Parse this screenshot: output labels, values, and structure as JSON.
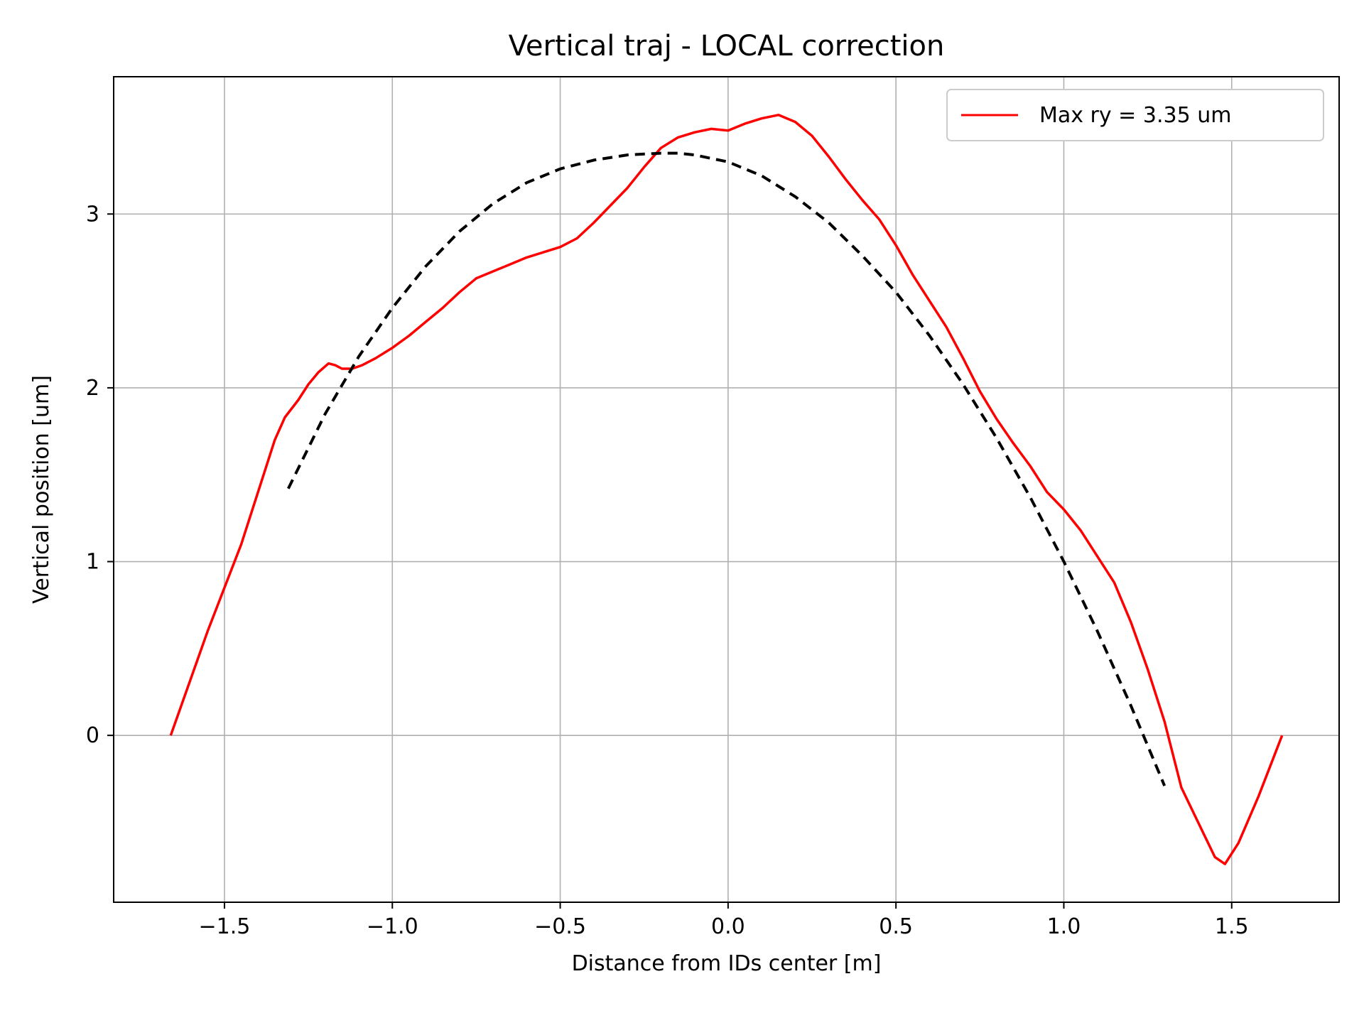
{
  "colors": {
    "measured": "#ff0000",
    "fit": "#000000",
    "grid": "#b0b0b0",
    "axes": "#000000",
    "legend_border": "#cccccc"
  },
  "chart_data": {
    "type": "line",
    "title": "Vertical traj - LOCAL correction",
    "xlabel": "Distance from IDs center [m]",
    "ylabel": "Vertical position [um]",
    "xlim": [
      -1.83,
      1.82
    ],
    "ylim": [
      -0.96,
      3.79
    ],
    "x_ticks": [
      -1.5,
      -1.0,
      -0.5,
      0.0,
      0.5,
      1.0,
      1.5
    ],
    "x_tick_labels": [
      "−1.5",
      "−1.0",
      "−0.5",
      "0.0",
      "0.5",
      "1.0",
      "1.5"
    ],
    "y_ticks": [
      0,
      1,
      2,
      3
    ],
    "y_tick_labels": [
      "0",
      "1",
      "2",
      "3"
    ],
    "grid": true,
    "legend_position": "top-right",
    "series": [
      {
        "name": "Max ry = 3.35 um",
        "style": "solid",
        "color": "#ff0000",
        "x": [
          -1.66,
          -1.55,
          -1.45,
          -1.4,
          -1.35,
          -1.32,
          -1.28,
          -1.25,
          -1.22,
          -1.19,
          -1.17,
          -1.15,
          -1.12,
          -1.09,
          -1.05,
          -1.0,
          -0.95,
          -0.9,
          -0.85,
          -0.8,
          -0.75,
          -0.7,
          -0.65,
          -0.6,
          -0.55,
          -0.5,
          -0.45,
          -0.4,
          -0.35,
          -0.3,
          -0.25,
          -0.2,
          -0.15,
          -0.1,
          -0.05,
          0.0,
          0.05,
          0.1,
          0.15,
          0.2,
          0.25,
          0.3,
          0.35,
          0.4,
          0.45,
          0.5,
          0.55,
          0.6,
          0.65,
          0.7,
          0.75,
          0.8,
          0.85,
          0.9,
          0.95,
          1.0,
          1.05,
          1.1,
          1.15,
          1.2,
          1.25,
          1.3,
          1.35,
          1.4,
          1.45,
          1.48,
          1.52,
          1.58,
          1.65
        ],
        "y": [
          0.0,
          0.6,
          1.1,
          1.4,
          1.7,
          1.83,
          1.93,
          2.02,
          2.09,
          2.14,
          2.13,
          2.11,
          2.11,
          2.13,
          2.17,
          2.23,
          2.3,
          2.38,
          2.46,
          2.55,
          2.63,
          2.67,
          2.71,
          2.75,
          2.78,
          2.81,
          2.86,
          2.95,
          3.05,
          3.15,
          3.27,
          3.38,
          3.44,
          3.47,
          3.49,
          3.48,
          3.52,
          3.55,
          3.57,
          3.53,
          3.45,
          3.33,
          3.2,
          3.08,
          2.97,
          2.82,
          2.65,
          2.5,
          2.35,
          2.17,
          1.98,
          1.82,
          1.68,
          1.55,
          1.4,
          1.3,
          1.18,
          1.03,
          0.88,
          0.65,
          0.38,
          0.08,
          -0.3,
          -0.5,
          -0.7,
          -0.74,
          -0.62,
          -0.35,
          0.0
        ]
      },
      {
        "name": "",
        "style": "dashed",
        "color": "#000000",
        "x": [
          -1.31,
          -1.2,
          -1.1,
          -1.0,
          -0.9,
          -0.8,
          -0.7,
          -0.6,
          -0.5,
          -0.4,
          -0.3,
          -0.2,
          -0.15,
          -0.1,
          0.0,
          0.1,
          0.2,
          0.3,
          0.4,
          0.5,
          0.6,
          0.7,
          0.8,
          0.9,
          1.0,
          1.1,
          1.2,
          1.3
        ],
        "y": [
          1.42,
          1.85,
          2.18,
          2.46,
          2.7,
          2.9,
          3.06,
          3.18,
          3.26,
          3.31,
          3.34,
          3.35,
          3.35,
          3.34,
          3.3,
          3.22,
          3.1,
          2.95,
          2.76,
          2.55,
          2.3,
          2.02,
          1.71,
          1.37,
          1.0,
          0.6,
          0.17,
          -0.29
        ]
      }
    ]
  }
}
